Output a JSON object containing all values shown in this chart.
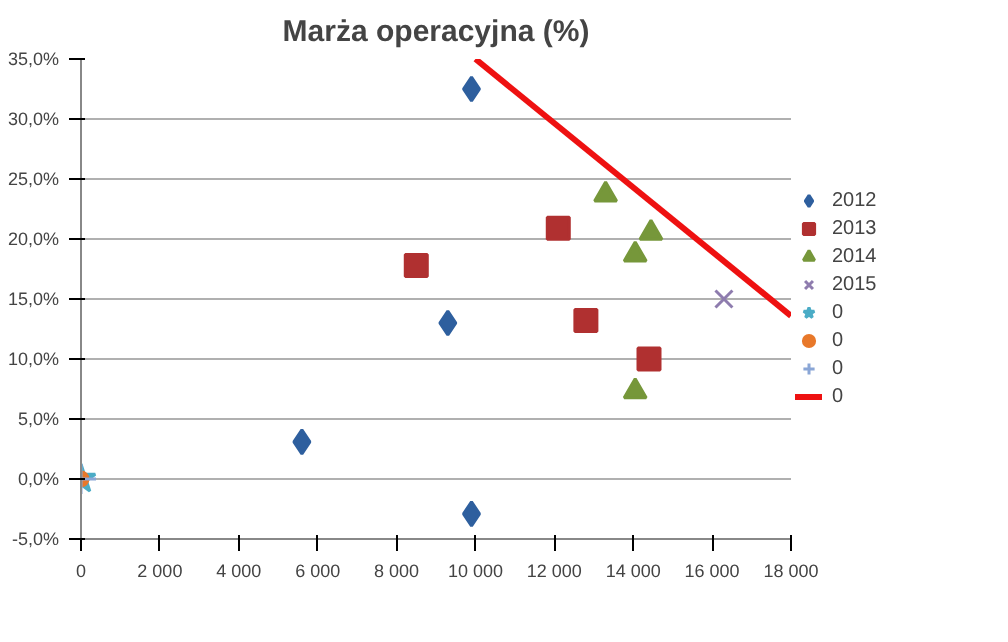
{
  "chart_data": {
    "type": "scatter",
    "title": "Marża operacyjna (%)",
    "xlim": [
      0,
      18000
    ],
    "ylim": [
      -5,
      35
    ],
    "xticks": [
      0,
      {
        "value": 2000,
        "label": "2 000"
      },
      {
        "value": 4000,
        "label": "4 000"
      },
      {
        "value": 6000,
        "label": "6 000"
      },
      {
        "value": 8000,
        "label": "8 000"
      },
      {
        "value": 10000,
        "label": "10 000"
      },
      {
        "value": 12000,
        "label": "12 000"
      },
      {
        "value": 14000,
        "label": "14 000"
      },
      {
        "value": 16000,
        "label": "16 000"
      },
      {
        "value": 18000,
        "label": "18 000"
      }
    ],
    "yticks": [
      {
        "value": -5,
        "label": "-5,0%"
      },
      {
        "value": 0,
        "label": "0,0%"
      },
      {
        "value": 5,
        "label": "5,0%"
      },
      {
        "value": 10,
        "label": "10,0%"
      },
      {
        "value": 15,
        "label": "15,0%"
      },
      {
        "value": 20,
        "label": "20,0%"
      },
      {
        "value": 25,
        "label": "25,0%"
      },
      {
        "value": 30,
        "label": "30,0%"
      },
      {
        "value": 35,
        "label": "35,0%"
      }
    ],
    "grid": "y",
    "legend": "right",
    "series": [
      {
        "name": "2012",
        "color": "#2e5f9e",
        "marker": "diamond",
        "x": [
          5600,
          9300,
          9900,
          9900
        ],
        "values": [
          3.1,
          13.0,
          32.5,
          -2.9
        ]
      },
      {
        "name": "2013",
        "color": "#b03030",
        "marker": "square",
        "x": [
          8500,
          12100,
          12800,
          14400
        ],
        "values": [
          17.8,
          20.9,
          13.2,
          10.0
        ]
      },
      {
        "name": "2014",
        "color": "#76973a",
        "marker": "triangle",
        "x": [
          13300,
          14450,
          14050,
          14050
        ],
        "values": [
          23.7,
          20.5,
          18.7,
          7.3
        ]
      },
      {
        "name": "2015",
        "color": "#8e7cae",
        "marker": "cross",
        "x": [
          16300
        ],
        "values": [
          15.0
        ]
      },
      {
        "name": "0",
        "color": "#4bacc6",
        "marker": "star",
        "x": [
          0
        ],
        "values": [
          0
        ]
      },
      {
        "name": "0",
        "color": "#e8782a",
        "marker": "circle",
        "x": [
          0
        ],
        "values": [
          0
        ]
      },
      {
        "name": "0",
        "color": "#8aa6d6",
        "marker": "plus",
        "x": [
          0
        ],
        "values": [
          0
        ]
      },
      {
        "name": "0",
        "type": "line",
        "color": "#ee1111",
        "marker": "none",
        "x": [
          10000,
          18000
        ],
        "values": [
          35.0,
          13.6
        ]
      }
    ]
  }
}
